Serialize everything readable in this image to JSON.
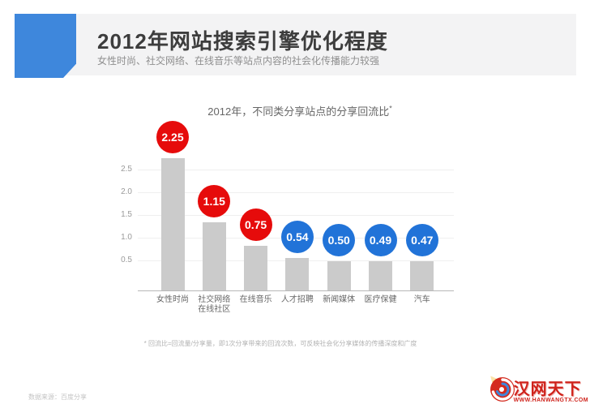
{
  "header": {
    "title": "2012年网站搜索引擎优化程度",
    "subtitle": "女性时尚、社交网络、在线音乐等站点内容的社会化传播能力较强"
  },
  "chart_data": {
    "type": "bar",
    "title": "2012年，不同类分享站点的分享回流比",
    "title_mark": "*",
    "categories": [
      [
        "女性时尚"
      ],
      [
        "社交网络",
        "在线社区"
      ],
      [
        "在线音乐"
      ],
      [
        "人才招聘"
      ],
      [
        "新闻媒体"
      ],
      [
        "医疗保健"
      ],
      [
        "汽车"
      ]
    ],
    "values": [
      2.25,
      1.15,
      0.75,
      0.54,
      0.5,
      0.49,
      0.47
    ],
    "value_labels": [
      "2.25",
      "1.15",
      "0.75",
      "0.54",
      "0.50",
      "0.49",
      "0.47"
    ],
    "bubble_colors": [
      "#e60b0b",
      "#e60b0b",
      "#e60b0b",
      "#2173d8",
      "#2173d8",
      "#2173d8",
      "#2173d8"
    ],
    "y_ticks": [
      "2.5",
      "2.0",
      "1.5",
      "1.0",
      "0.5"
    ],
    "ylim": [
      0,
      3
    ],
    "grid": true,
    "bar_color": "#cbcbcb",
    "legend": "none"
  },
  "notes": {
    "footnote": "* 回流比=回流量/分享量，即1次分享带来的回流次数，可反映社会化分享媒体的传播深度和广度",
    "source": "数据来源：百度分享"
  },
  "logo": {
    "name": "汉网天下",
    "url": "WWW.HANWANGTX.COM"
  },
  "colors": {
    "accent_blue": "#3e87dc",
    "header_strip": "#f3f3f4",
    "bubble_red": "#e60b0b",
    "bubble_blue": "#2173d8",
    "bar_gray": "#cbcbcb"
  }
}
